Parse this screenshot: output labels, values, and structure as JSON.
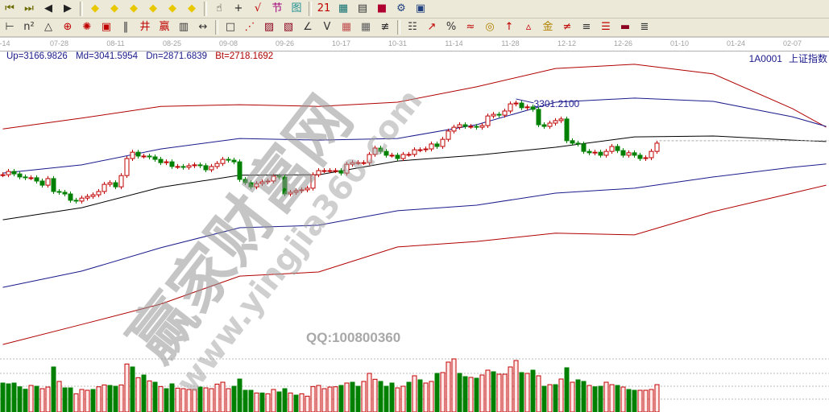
{
  "toolbar_row1": [
    {
      "name": "first-page-icon",
      "glyph": "⏮",
      "color": "#6b6b00"
    },
    {
      "name": "last-page-icon",
      "glyph": "⏭",
      "color": "#6b6b00"
    },
    {
      "name": "move-left-icon",
      "glyph": "◀",
      "color": "#222"
    },
    {
      "name": "move-right-icon",
      "glyph": "▶",
      "color": "#222"
    },
    {
      "sep": true
    },
    {
      "name": "scroll-left-icon",
      "glyph": "◆",
      "color": "#e8c800"
    },
    {
      "name": "scroll-right-icon",
      "glyph": "◆",
      "color": "#e8c800"
    },
    {
      "name": "zoom-in-horizontal-icon",
      "glyph": "◆",
      "color": "#e8c800"
    },
    {
      "name": "zoom-out-horizontal-icon",
      "glyph": "◆",
      "color": "#e8c800"
    },
    {
      "name": "zoom-all-icon",
      "glyph": "◆",
      "color": "#e8c800"
    },
    {
      "name": "expand-icon",
      "glyph": "◆",
      "color": "#e8c800"
    },
    {
      "sep": true
    },
    {
      "name": "hand-icon",
      "glyph": "☝",
      "color": "#222"
    },
    {
      "name": "crosshair-icon",
      "glyph": "+",
      "color": "#222"
    },
    {
      "name": "line-draw-icon",
      "glyph": "√",
      "color": "#c00000"
    },
    {
      "name": "tag-icon",
      "glyph": "节",
      "color": "#a0007a"
    },
    {
      "name": "grid-icon",
      "glyph": "图",
      "color": "#209090"
    },
    {
      "sep": true
    },
    {
      "name": "calendar-icon",
      "glyph": "21",
      "color": "#c00000"
    },
    {
      "name": "calculator-icon",
      "glyph": "▦",
      "color": "#107070"
    },
    {
      "name": "notepad-icon",
      "glyph": "▤",
      "color": "#333"
    },
    {
      "name": "save-icon",
      "glyph": "■",
      "color": "#b00030"
    },
    {
      "name": "network-icon",
      "glyph": "⚙",
      "color": "#204080"
    },
    {
      "name": "printer-icon",
      "glyph": "▣",
      "color": "#204080"
    }
  ],
  "toolbar_row2": [
    {
      "name": "line-tool-icon",
      "glyph": "⊢",
      "color": "#333"
    },
    {
      "name": "text-tool-icon",
      "glyph": "n²",
      "color": "#333"
    },
    {
      "name": "triangle-tool-icon",
      "glyph": "△",
      "color": "#333"
    },
    {
      "name": "circle-tool-icon",
      "glyph": "⊕",
      "color": "#c00000"
    },
    {
      "name": "spiral-tool-icon",
      "glyph": "✺",
      "color": "#c00000"
    },
    {
      "name": "box-tool-icon",
      "glyph": "▣",
      "color": "#c00000"
    },
    {
      "name": "period-tool-icon",
      "glyph": "‖",
      "color": "#333"
    },
    {
      "name": "fib-tool-icon",
      "glyph": "井",
      "color": "#c00000"
    },
    {
      "name": "wave-tool-icon",
      "glyph": "赢",
      "color": "#c00000"
    },
    {
      "name": "ruler-tool-icon",
      "glyph": "▥",
      "color": "#333"
    },
    {
      "name": "width-tool-icon",
      "glyph": "↔",
      "color": "#333"
    },
    {
      "sep": true
    },
    {
      "name": "rect-tool-icon",
      "glyph": "□",
      "color": "#333"
    },
    {
      "name": "fan-tool-icon",
      "glyph": "⋰",
      "color": "#c00000"
    },
    {
      "name": "gann-fan-icon",
      "glyph": "▨",
      "color": "#8b0020"
    },
    {
      "name": "gann-box-icon",
      "glyph": "▧",
      "color": "#8b0020"
    },
    {
      "name": "angle-tool-icon",
      "glyph": "∠",
      "color": "#333"
    },
    {
      "name": "v-tool-icon",
      "glyph": "V",
      "color": "#333"
    },
    {
      "name": "grid-red-icon",
      "glyph": "▦",
      "color": "#c05050"
    },
    {
      "name": "grid-dark-icon",
      "glyph": "▦",
      "color": "#606060"
    },
    {
      "name": "parallel-tool-icon",
      "glyph": "≢",
      "color": "#333"
    },
    {
      "sep": true
    },
    {
      "name": "table-tool-icon",
      "glyph": "☷",
      "color": "#333"
    },
    {
      "name": "trend-tool-icon",
      "glyph": "↗",
      "color": "#c00000"
    },
    {
      "name": "percent-icon",
      "glyph": "%",
      "color": "#333"
    },
    {
      "name": "ratio-icon",
      "glyph": "≈",
      "color": "#c00000"
    },
    {
      "name": "coin-icon",
      "glyph": "◎",
      "color": "#b08000"
    },
    {
      "name": "arrow-up-tool-icon",
      "glyph": "↑",
      "color": "#c00000"
    },
    {
      "name": "triangle-red-icon",
      "glyph": "▵",
      "color": "#c00000"
    },
    {
      "name": "gold-icon",
      "glyph": "金",
      "color": "#b08000"
    },
    {
      "name": "line-red-icon",
      "glyph": "≠",
      "color": "#c00000"
    },
    {
      "name": "line-dash-icon",
      "glyph": "≡",
      "color": "#333"
    },
    {
      "name": "stack-icon",
      "glyph": "☰",
      "color": "#c00000"
    },
    {
      "name": "bars-icon",
      "glyph": "▬",
      "color": "#8b0020"
    },
    {
      "name": "lines-icon",
      "glyph": "≣",
      "color": "#333"
    }
  ],
  "date_axis": {
    "labels": [
      "-14",
      "07-28",
      "08-11",
      "08-25",
      "09-08",
      "09-26",
      "10-17",
      "10-31",
      "11-14",
      "11-28",
      "12-12",
      "12-26",
      "01-10",
      "01-24",
      "02-07"
    ]
  },
  "header": {
    "up": "Up=3166.9826",
    "md": "Md=3041.5954",
    "dn": "Dn=2871.6839",
    "bt": "Bt=2718.1692",
    "code": "1A0001",
    "name": "上证指数"
  },
  "annotation": {
    "label": "3301.2100",
    "price": 3301.21,
    "bar": 91
  },
  "watermark": {
    "site_cn": "赢家财富网",
    "site_url": "www.yingjia360.com",
    "qq": "QQ:100800360"
  },
  "colors": {
    "up": "#c00000",
    "down": "#008000",
    "band_outer": "#b00000",
    "band_inner": "#1a1a8c",
    "mid": "#000000",
    "annotation": "#1a1a8c"
  },
  "chart_data": {
    "type": "candlestick",
    "price_range": [
      2378,
      3491
    ],
    "close": [
      3031,
      3043,
      3034,
      3023,
      3020,
      3020,
      3008,
      2993,
      3017,
      2970,
      2967,
      2961,
      2938,
      2935,
      2946,
      2952,
      2958,
      2970,
      2996,
      3002,
      2987,
      3028,
      3090,
      3113,
      3099,
      3099,
      3096,
      3087,
      3075,
      3078,
      3061,
      3061,
      3058,
      3064,
      3067,
      3064,
      3049,
      3061,
      3072,
      3087,
      3084,
      3078,
      3014,
      3002,
      2987,
      2999,
      3005,
      3008,
      3026,
      3023,
      2961,
      2967,
      2973,
      2976,
      2982,
      3031,
      3046,
      3046,
      3046,
      3046,
      3037,
      3069,
      3075,
      3075,
      3075,
      3105,
      3128,
      3116,
      3102,
      3102,
      3090,
      3105,
      3105,
      3122,
      3122,
      3125,
      3143,
      3134,
      3160,
      3190,
      3204,
      3213,
      3207,
      3207,
      3204,
      3210,
      3245,
      3251,
      3248,
      3263,
      3289,
      3292,
      3275,
      3278,
      3269,
      3213,
      3207,
      3219,
      3228,
      3234,
      3155,
      3146,
      3143,
      3116,
      3111,
      3113,
      3102,
      3116,
      3134,
      3119,
      3102,
      3111,
      3102,
      3090,
      3093,
      3116,
      3146
    ],
    "bands": {
      "bar_index": [
        0,
        14,
        28,
        42,
        56,
        70,
        84,
        98,
        112,
        126,
        140,
        146
      ],
      "upper_outer": [
        3198,
        3237,
        3280,
        3286,
        3280,
        3295,
        3351,
        3418,
        3433,
        3398,
        3272,
        3204
      ],
      "upper": [
        3037,
        3067,
        3125,
        3163,
        3157,
        3163,
        3213,
        3295,
        3310,
        3298,
        3242,
        3207
      ],
      "mid": [
        2867,
        2911,
        2985,
        3029,
        3031,
        3081,
        3102,
        3131,
        3169,
        3172,
        3157,
        3152
      ],
      "lower": [
        2621,
        2680,
        2765,
        2838,
        2847,
        2900,
        2920,
        2964,
        2982,
        3023,
        3058,
        3070
      ],
      "lower_outer": [
        2413,
        2486,
        2560,
        2662,
        2677,
        2768,
        2788,
        2818,
        2812,
        2897,
        2964,
        2993
      ]
    },
    "volume": [
      108,
      105,
      108,
      94,
      85,
      99,
      96,
      87,
      93,
      168,
      114,
      90,
      90,
      68,
      84,
      81,
      84,
      94,
      101,
      99,
      96,
      101,
      179,
      168,
      128,
      138,
      116,
      111,
      95,
      87,
      105,
      89,
      87,
      84,
      84,
      93,
      90,
      87,
      104,
      111,
      87,
      96,
      123,
      81,
      81,
      71,
      71,
      68,
      84,
      75,
      87,
      71,
      63,
      68,
      59,
      95,
      99,
      87,
      93,
      94,
      99,
      108,
      111,
      96,
      114,
      144,
      122,
      114,
      96,
      108,
      90,
      96,
      111,
      135,
      120,
      108,
      114,
      144,
      147,
      186,
      198,
      144,
      132,
      129,
      126,
      138,
      156,
      150,
      141,
      141,
      168,
      192,
      147,
      144,
      156,
      135,
      96,
      102,
      102,
      123,
      165,
      111,
      120,
      114,
      99,
      94,
      96,
      111,
      102,
      99,
      93,
      84,
      81,
      81,
      81,
      84,
      102
    ],
    "volume_up": [
      0,
      0,
      0,
      0,
      0,
      1,
      0,
      1,
      1,
      0,
      1,
      0,
      0,
      1,
      1,
      1,
      0,
      1,
      1,
      0,
      0,
      1,
      1,
      0,
      1,
      0,
      1,
      0,
      1,
      0,
      0,
      1,
      1,
      1,
      1,
      0,
      1,
      1,
      1,
      1,
      1,
      0,
      0,
      0,
      0,
      1,
      0,
      1,
      1,
      0,
      0,
      1,
      0,
      1,
      1,
      1,
      1,
      1,
      1,
      1,
      0,
      1,
      0,
      0,
      1,
      1,
      1,
      0,
      0,
      0,
      1,
      1,
      0,
      1,
      0,
      1,
      1,
      0,
      1,
      1,
      1,
      0,
      0,
      1,
      0,
      1,
      1,
      0,
      1,
      1,
      1,
      1,
      0,
      1,
      0,
      1,
      0,
      1,
      0,
      1,
      0,
      1,
      0,
      0,
      1,
      0,
      0,
      1,
      1,
      0,
      1,
      0,
      0,
      1,
      1,
      1,
      1
    ],
    "volume_range": [
      0,
      216
    ]
  }
}
